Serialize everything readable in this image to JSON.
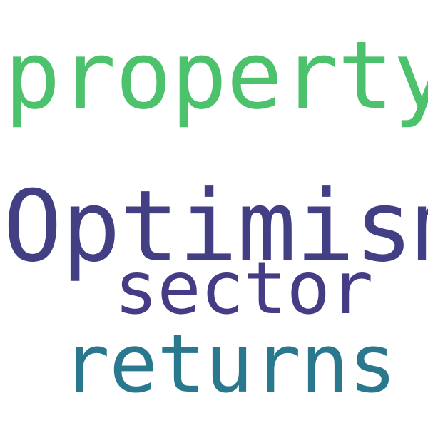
{
  "word_cloud": {
    "words": [
      {
        "text": "property",
        "color": "#4cc26c"
      },
      {
        "text": "Optimism",
        "color": "#423f85"
      },
      {
        "text": "sector",
        "color": "#443c84"
      },
      {
        "text": "returns",
        "color": "#2a788e"
      }
    ]
  }
}
